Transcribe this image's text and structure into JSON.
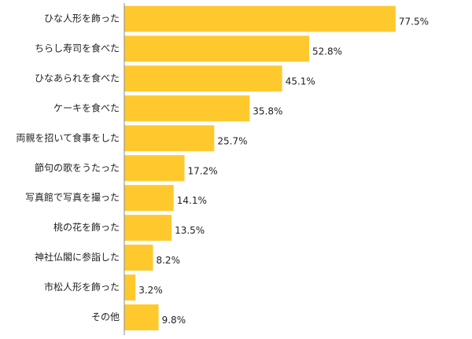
{
  "chart_data": {
    "type": "bar",
    "orientation": "horizontal",
    "categories": [
      "ひな人形を飾った",
      "ちらし寿司を食べた",
      "ひなあられを食べた",
      "ケーキを食べた",
      "両親を招いて食事をした",
      "節句の歌をうたった",
      "写真館で写真を撮った",
      "桃の花を飾った",
      "神社仏閣に参詣した",
      "市松人形を飾った",
      "その他"
    ],
    "values": [
      77.5,
      52.8,
      45.1,
      35.8,
      25.7,
      17.2,
      14.1,
      13.5,
      8.2,
      3.2,
      9.8
    ],
    "value_labels": [
      "77.5%",
      "52.8%",
      "45.1%",
      "35.8%",
      "25.7%",
      "17.2%",
      "14.1%",
      "13.5%",
      "8.2%",
      "3.2%",
      "9.8%"
    ],
    "xlim": [
      0,
      100
    ],
    "grid": false,
    "colors": {
      "bar": "#FFC92E",
      "axis": "#888888"
    }
  }
}
